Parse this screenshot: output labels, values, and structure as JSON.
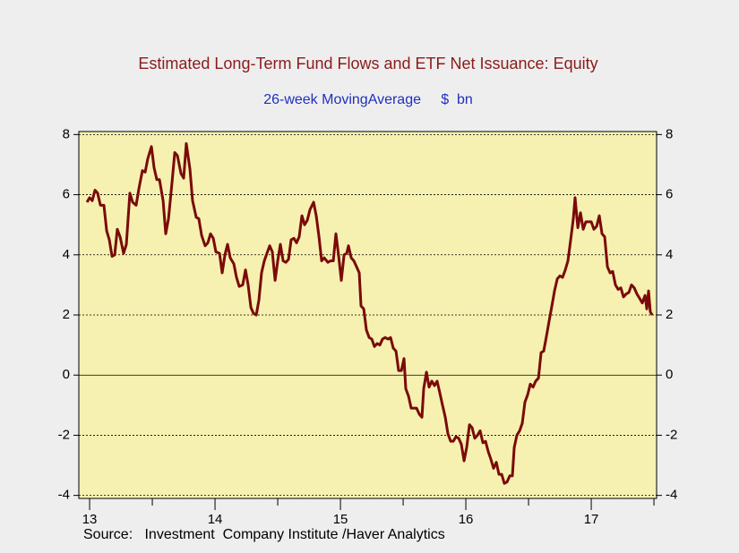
{
  "chart_data": {
    "type": "line",
    "title": "Estimated Long-Term Fund Flows and ETF Net Issuance: Equity",
    "subtitle": "26-week MovingAverage     $  bn",
    "source": "Source:   Investment  Company Institute /Haver Analytics",
    "xlim": [
      12.914,
      17.521
    ],
    "xticks": [
      13,
      14,
      15,
      16,
      17
    ],
    "xminorticks": [
      13.5,
      14.5,
      15.5,
      16.5,
      17.5
    ],
    "ylim": [
      -4.1,
      8.1
    ],
    "yticks": [
      -4,
      -2,
      0,
      2,
      4,
      6,
      8
    ],
    "grid": true,
    "series": [
      {
        "color": "#7a0a0a",
        "x": [
          12.979,
          13,
          13.021,
          13.043,
          13.064,
          13.086,
          13.114,
          13.136,
          13.157,
          13.179,
          13.2,
          13.221,
          13.243,
          13.271,
          13.293,
          13.321,
          13.343,
          13.371,
          13.393,
          13.421,
          13.443,
          13.464,
          13.493,
          13.514,
          13.536,
          13.557,
          13.586,
          13.607,
          13.629,
          13.657,
          13.679,
          13.7,
          13.729,
          13.75,
          13.771,
          13.8,
          13.821,
          13.85,
          13.871,
          13.893,
          13.921,
          13.943,
          13.964,
          13.986,
          14.007,
          14.036,
          14.057,
          14.079,
          14.1,
          14.121,
          14.15,
          14.171,
          14.193,
          14.221,
          14.243,
          14.264,
          14.286,
          14.307,
          14.329,
          14.35,
          14.371,
          14.393,
          14.414,
          14.436,
          14.457,
          14.479,
          14.5,
          14.521,
          14.543,
          14.564,
          14.586,
          14.607,
          14.629,
          14.65,
          14.671,
          14.693,
          14.714,
          14.736,
          14.757,
          14.786,
          14.807,
          14.829,
          14.85,
          14.871,
          14.9,
          14.921,
          14.943,
          14.964,
          14.986,
          15.007,
          15.029,
          15.05,
          15.064,
          15.086,
          15.107,
          15.129,
          15.15,
          15.164,
          15.186,
          15.207,
          15.229,
          15.25,
          15.271,
          15.293,
          15.314,
          15.336,
          15.357,
          15.379,
          15.4,
          15.421,
          15.443,
          15.464,
          15.486,
          15.507,
          15.521,
          15.543,
          15.564,
          15.586,
          15.607,
          15.629,
          15.65,
          15.664,
          15.686,
          15.707,
          15.729,
          15.75,
          15.771,
          15.793,
          15.814,
          15.836,
          15.857,
          15.879,
          15.9,
          15.921,
          15.943,
          15.964,
          15.986,
          16.007,
          16.029,
          16.05,
          16.071,
          16.093,
          16.114,
          16.136,
          16.157,
          16.179,
          16.2,
          16.221,
          16.243,
          16.264,
          16.286,
          16.307,
          16.329,
          16.35,
          16.371,
          16.386,
          16.407,
          16.429,
          16.45,
          16.471,
          16.493,
          16.514,
          16.536,
          16.557,
          16.579,
          16.6,
          16.621,
          16.643,
          16.664,
          16.686,
          16.707,
          16.729,
          16.75,
          16.771,
          16.793,
          16.814,
          16.836,
          16.857,
          16.871,
          16.893,
          16.914,
          16.936,
          16.957,
          16.979,
          17,
          17.021,
          17.043,
          17.064,
          17.086,
          17.107,
          17.129,
          17.15,
          17.171,
          17.193,
          17.214,
          17.236,
          17.257,
          17.279,
          17.3,
          17.321,
          17.343,
          17.364,
          17.386,
          17.407,
          17.429,
          17.443,
          17.457,
          17.471,
          17.486
        ],
        "values": [
          5.75,
          5.9,
          5.8,
          6.15,
          6.05,
          5.65,
          5.65,
          4.8,
          4.5,
          3.95,
          4.0,
          4.85,
          4.6,
          4.05,
          4.35,
          6.05,
          5.75,
          5.65,
          6.2,
          6.8,
          6.75,
          7.2,
          7.6,
          6.9,
          6.5,
          6.5,
          5.8,
          4.7,
          5.2,
          6.4,
          7.4,
          7.3,
          6.7,
          6.55,
          7.7,
          6.85,
          5.8,
          5.25,
          5.2,
          4.65,
          4.3,
          4.4,
          4.7,
          4.55,
          4.1,
          4.05,
          3.4,
          4.0,
          4.35,
          3.9,
          3.7,
          3.25,
          2.95,
          3.0,
          3.5,
          3.0,
          2.25,
          2.05,
          2.0,
          2.5,
          3.4,
          3.8,
          4.05,
          4.3,
          4.1,
          3.15,
          3.8,
          4.35,
          3.8,
          3.75,
          3.85,
          4.5,
          4.55,
          4.4,
          4.6,
          5.3,
          5.0,
          5.15,
          5.5,
          5.75,
          5.3,
          4.6,
          3.8,
          3.9,
          3.75,
          3.8,
          3.8,
          4.7,
          3.95,
          3.15,
          4.0,
          4.05,
          4.3,
          3.9,
          3.8,
          3.6,
          3.4,
          2.3,
          2.2,
          1.5,
          1.25,
          1.2,
          0.95,
          1.05,
          1.0,
          1.2,
          1.25,
          1.2,
          1.25,
          0.9,
          0.8,
          0.15,
          0.15,
          0.55,
          -0.45,
          -0.7,
          -1.1,
          -1.1,
          -1.1,
          -1.3,
          -1.4,
          -0.45,
          0.1,
          -0.4,
          -0.2,
          -0.35,
          -0.2,
          -0.6,
          -1.0,
          -1.4,
          -1.95,
          -2.2,
          -2.2,
          -2.05,
          -2.1,
          -2.3,
          -2.85,
          -2.4,
          -1.65,
          -1.75,
          -2.1,
          -2.0,
          -1.85,
          -2.25,
          -2.2,
          -2.55,
          -2.8,
          -3.1,
          -2.9,
          -3.3,
          -3.3,
          -3.6,
          -3.55,
          -3.35,
          -3.35,
          -2.4,
          -2.0,
          -1.85,
          -1.6,
          -0.9,
          -0.65,
          -0.3,
          -0.4,
          -0.2,
          -0.1,
          0.75,
          0.8,
          1.3,
          1.8,
          2.3,
          2.8,
          3.2,
          3.3,
          3.25,
          3.5,
          3.8,
          4.5,
          5.2,
          5.9,
          4.9,
          5.4,
          4.85,
          5.1,
          5.1,
          5.1,
          4.85,
          4.95,
          5.3,
          4.7,
          4.6,
          3.6,
          3.4,
          3.45,
          3.0,
          2.85,
          2.9,
          2.6,
          2.7,
          2.75,
          3.0,
          2.9,
          2.7,
          2.55,
          2.4,
          2.65,
          2.2,
          2.8,
          2.1,
          2.0
        ]
      }
    ]
  }
}
